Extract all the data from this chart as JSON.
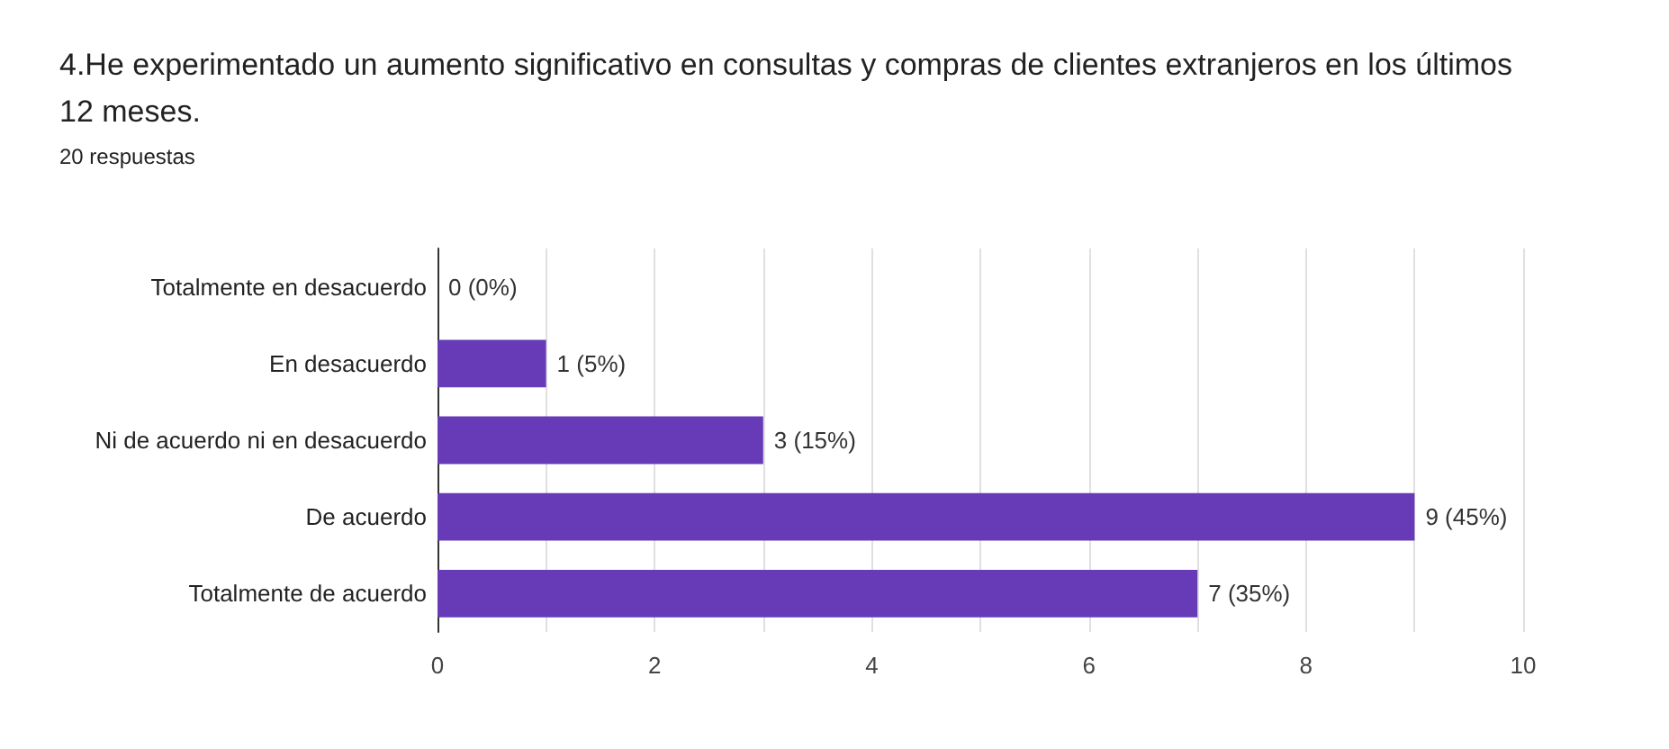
{
  "chart_data": {
    "type": "bar",
    "orientation": "horizontal",
    "title": "4.He experimentado un aumento significativo en consultas y compras de clientes extranjeros en los últimos 12 meses.",
    "subtitle": "20 respuestas",
    "categories": [
      "Totalmente en desacuerdo",
      "En desacuerdo",
      "Ni de acuerdo ni en desacuerdo",
      "De acuerdo",
      "Totalmente de acuerdo"
    ],
    "values": [
      0,
      1,
      3,
      9,
      7
    ],
    "value_labels": [
      "0 (0%)",
      "1 (5%)",
      "3 (15%)",
      "9 (45%)",
      "7 (35%)"
    ],
    "color": "#673ab7",
    "xlim": [
      0,
      10
    ],
    "xticks": [
      0,
      {
        "value": 1,
        "label": null
      },
      2,
      {
        "value": 3,
        "label": null
      },
      4,
      {
        "value": 5,
        "label": null
      },
      6,
      {
        "value": 7,
        "label": null
      },
      8,
      {
        "value": 9,
        "label": null
      },
      10
    ],
    "grid": "x"
  }
}
